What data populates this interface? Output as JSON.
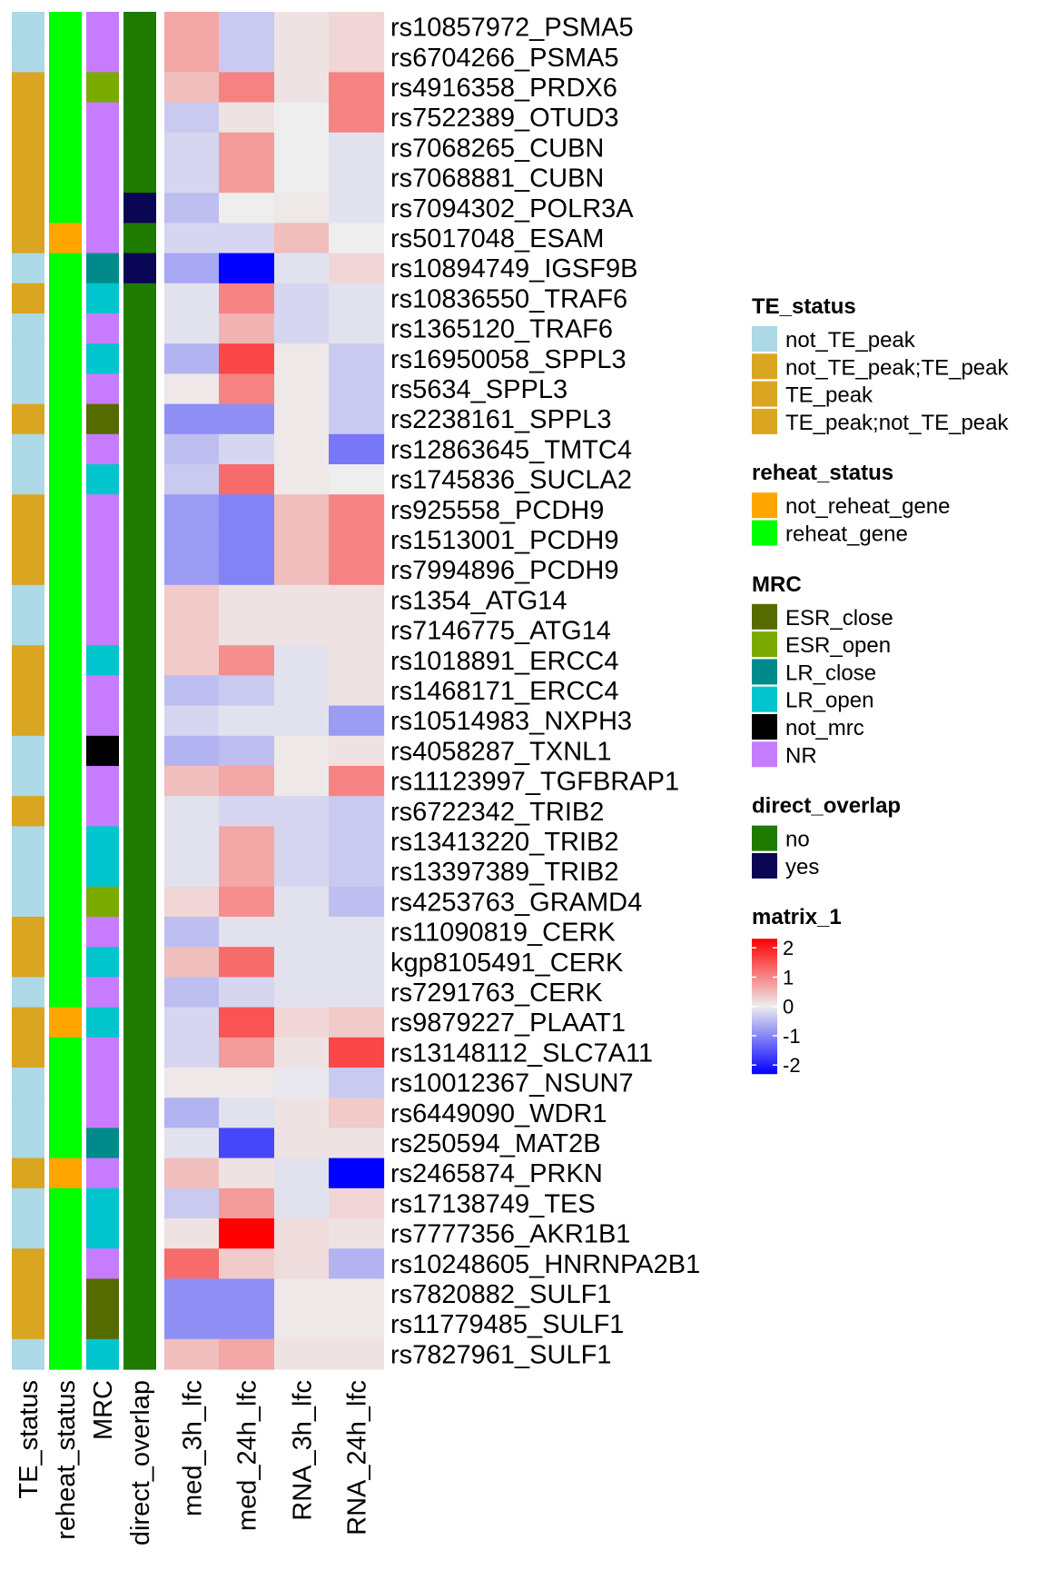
{
  "chart_data": {
    "type": "heatmap",
    "rows": [
      "rs10857972_PSMA5",
      "rs6704266_PSMA5",
      "rs4916358_PRDX6",
      "rs7522389_OTUD3",
      "rs7068265_CUBN",
      "rs7068881_CUBN",
      "rs7094302_POLR3A",
      "rs5017048_ESAM",
      "rs10894749_IGSF9B",
      "rs10836550_TRAF6",
      "rs1365120_TRAF6",
      "rs16950058_SPPL3",
      "rs5634_SPPL3",
      "rs2238161_SPPL3",
      "rs12863645_TMTC4",
      "rs1745836_SUCLA2",
      "rs925558_PCDH9",
      "rs1513001_PCDH9",
      "rs7994896_PCDH9",
      "rs1354_ATG14",
      "rs7146775_ATG14",
      "rs1018891_ERCC4",
      "rs1468171_ERCC4",
      "rs10514983_NXPH3",
      "rs4058287_TXNL1",
      "rs11123997_TGFBRAP1",
      "rs6722342_TRIB2",
      "rs13413220_TRIB2",
      "rs13397389_TRIB2",
      "rs4253763_GRAMD4",
      "rs11090819_CERK",
      "kgp8105491_CERK",
      "rs7291763_CERK",
      "rs9879227_PLAAT1",
      "rs13148112_SLC7A11",
      "rs10012367_NSUN7",
      "rs6449090_WDR1",
      "rs250594_MAT2B",
      "rs2465874_PRKN",
      "rs17138749_TES",
      "rs7777356_AKR1B1",
      "rs10248605_HNRNPA2B1",
      "rs7820882_SULF1",
      "rs11779485_SULF1",
      "rs7827961_SULF1"
    ],
    "annotation_columns": [
      "TE_status",
      "reheat_status",
      "MRC",
      "direct_overlap"
    ],
    "matrix_columns": [
      "med_3h_lfc",
      "med_24h_lfc",
      "RNA_3h_lfc",
      "RNA_24h_lfc"
    ],
    "annotations": {
      "TE_status": [
        "not_TE_peak",
        "not_TE_peak",
        "TE_peak",
        "TE_peak",
        "TE_peak",
        "TE_peak",
        "TE_peak",
        "TE_peak",
        "not_TE_peak",
        "TE_peak",
        "not_TE_peak",
        "not_TE_peak",
        "not_TE_peak",
        "TE_peak",
        "not_TE_peak",
        "not_TE_peak",
        "TE_peak",
        "TE_peak",
        "TE_peak",
        "not_TE_peak",
        "not_TE_peak",
        "TE_peak",
        "TE_peak",
        "TE_peak",
        "not_TE_peak",
        "not_TE_peak",
        "TE_peak",
        "not_TE_peak",
        "not_TE_peak",
        "not_TE_peak",
        "TE_peak",
        "TE_peak",
        "not_TE_peak",
        "TE_peak",
        "TE_peak",
        "not_TE_peak",
        "not_TE_peak",
        "not_TE_peak",
        "TE_peak",
        "not_TE_peak",
        "not_TE_peak",
        "TE_peak",
        "TE_peak",
        "TE_peak",
        "not_TE_peak"
      ],
      "reheat_status": [
        "reheat_gene",
        "reheat_gene",
        "reheat_gene",
        "reheat_gene",
        "reheat_gene",
        "reheat_gene",
        "reheat_gene",
        "not_reheat_gene",
        "reheat_gene",
        "reheat_gene",
        "reheat_gene",
        "reheat_gene",
        "reheat_gene",
        "reheat_gene",
        "reheat_gene",
        "reheat_gene",
        "reheat_gene",
        "reheat_gene",
        "reheat_gene",
        "reheat_gene",
        "reheat_gene",
        "reheat_gene",
        "reheat_gene",
        "reheat_gene",
        "reheat_gene",
        "reheat_gene",
        "reheat_gene",
        "reheat_gene",
        "reheat_gene",
        "reheat_gene",
        "reheat_gene",
        "reheat_gene",
        "reheat_gene",
        "not_reheat_gene",
        "reheat_gene",
        "reheat_gene",
        "reheat_gene",
        "reheat_gene",
        "not_reheat_gene",
        "reheat_gene",
        "reheat_gene",
        "reheat_gene",
        "reheat_gene",
        "reheat_gene",
        "reheat_gene"
      ],
      "MRC": [
        "NR",
        "NR",
        "ESR_open",
        "NR",
        "NR",
        "NR",
        "NR",
        "NR",
        "LR_close",
        "LR_open",
        "NR",
        "LR_open",
        "NR",
        "ESR_close",
        "NR",
        "LR_open",
        "NR",
        "NR",
        "NR",
        "NR",
        "NR",
        "LR_open",
        "NR",
        "NR",
        "not_mrc",
        "NR",
        "NR",
        "LR_open",
        "LR_open",
        "ESR_open",
        "NR",
        "LR_open",
        "NR",
        "LR_open",
        "NR",
        "NR",
        "NR",
        "LR_close",
        "NR",
        "LR_open",
        "LR_open",
        "NR",
        "ESR_close",
        "ESR_close",
        "LR_open"
      ],
      "direct_overlap": [
        "no",
        "no",
        "no",
        "no",
        "no",
        "no",
        "yes",
        "no",
        "yes",
        "no",
        "no",
        "no",
        "no",
        "no",
        "no",
        "no",
        "no",
        "no",
        "no",
        "no",
        "no",
        "no",
        "no",
        "no",
        "no",
        "no",
        "no",
        "no",
        "no",
        "no",
        "no",
        "no",
        "no",
        "no",
        "no",
        "no",
        "no",
        "no",
        "no",
        "no",
        "no",
        "no",
        "no",
        "no",
        "no"
      ]
    },
    "values": [
      [
        0.6,
        -0.3,
        0.1,
        0.2
      ],
      [
        0.6,
        -0.3,
        0.1,
        0.2
      ],
      [
        0.4,
        0.9,
        0.1,
        0.9
      ],
      [
        -0.3,
        0.1,
        0.0,
        0.9
      ],
      [
        -0.2,
        0.7,
        0.0,
        -0.1
      ],
      [
        -0.2,
        0.7,
        0.0,
        -0.1
      ],
      [
        -0.4,
        0.0,
        0.05,
        -0.1
      ],
      [
        -0.2,
        -0.2,
        0.4,
        0.0
      ],
      [
        -0.6,
        -2.0,
        -0.1,
        0.2
      ],
      [
        -0.1,
        0.9,
        -0.2,
        -0.1
      ],
      [
        -0.1,
        0.5,
        -0.2,
        -0.1
      ],
      [
        -0.5,
        1.4,
        0.05,
        -0.3
      ],
      [
        0.05,
        0.9,
        0.05,
        -0.3
      ],
      [
        -0.8,
        -0.8,
        0.05,
        -0.3
      ],
      [
        -0.4,
        -0.2,
        0.05,
        -1.0
      ],
      [
        -0.3,
        1.1,
        0.05,
        0.0
      ],
      [
        -0.7,
        -0.9,
        0.4,
        0.9
      ],
      [
        -0.7,
        -0.9,
        0.4,
        0.9
      ],
      [
        -0.7,
        -0.9,
        0.4,
        0.9
      ],
      [
        0.3,
        0.1,
        0.1,
        0.1
      ],
      [
        0.3,
        0.1,
        0.1,
        0.1
      ],
      [
        0.3,
        0.8,
        -0.1,
        0.1
      ],
      [
        -0.4,
        -0.3,
        -0.1,
        0.1
      ],
      [
        -0.2,
        -0.1,
        -0.1,
        -0.7
      ],
      [
        -0.5,
        -0.4,
        0.05,
        0.1
      ],
      [
        0.4,
        0.6,
        0.05,
        0.9
      ],
      [
        -0.1,
        -0.2,
        -0.2,
        -0.3
      ],
      [
        -0.1,
        0.6,
        -0.2,
        -0.3
      ],
      [
        -0.1,
        0.6,
        -0.2,
        -0.3
      ],
      [
        0.2,
        0.8,
        -0.1,
        -0.4
      ],
      [
        -0.4,
        -0.1,
        -0.1,
        -0.1
      ],
      [
        0.4,
        1.1,
        -0.1,
        -0.1
      ],
      [
        -0.4,
        -0.2,
        -0.1,
        -0.1
      ],
      [
        -0.2,
        1.3,
        0.2,
        0.3
      ],
      [
        -0.2,
        0.7,
        0.1,
        1.4
      ],
      [
        0.05,
        0.05,
        -0.05,
        -0.3
      ],
      [
        -0.5,
        -0.1,
        0.1,
        0.3
      ],
      [
        -0.1,
        -1.4,
        0.1,
        0.1
      ],
      [
        0.4,
        0.1,
        -0.1,
        -2.0
      ],
      [
        -0.3,
        0.7,
        -0.1,
        0.2
      ],
      [
        0.1,
        2.0,
        0.15,
        0.1
      ],
      [
        1.1,
        0.3,
        0.15,
        -0.5
      ],
      [
        -0.8,
        -0.8,
        0.05,
        0.05
      ],
      [
        -0.8,
        -0.8,
        0.05,
        0.05
      ],
      [
        0.4,
        0.6,
        0.1,
        0.1
      ]
    ],
    "colors": {
      "TE_status": {
        "not_TE_peak": "#ADD8E6",
        "not_TE_peak;TE_peak": "#DAA520",
        "TE_peak": "#DAA520",
        "TE_peak;not_TE_peak": "#DAA520"
      },
      "reheat_status": {
        "not_reheat_gene": "#FFA500",
        "reheat_gene": "#00FF00"
      },
      "MRC": {
        "ESR_close": "#556B00",
        "ESR_open": "#7AAA00",
        "LR_close": "#008B8B",
        "LR_open": "#00C5CD",
        "not_mrc": "#000000",
        "NR": "#C77CFF"
      },
      "direct_overlap": {
        "no": "#1F7A00",
        "yes": "#0B0555"
      },
      "matrix_low": "#0000FF",
      "matrix_mid": "#EEEEEE",
      "matrix_high": "#FF0000"
    },
    "legends": [
      {
        "title": "TE_status",
        "items": [
          "not_TE_peak",
          "not_TE_peak;TE_peak",
          "TE_peak",
          "TE_peak;not_TE_peak"
        ]
      },
      {
        "title": "reheat_status",
        "items": [
          "not_reheat_gene",
          "reheat_gene"
        ]
      },
      {
        "title": "MRC",
        "items": [
          "ESR_close",
          "ESR_open",
          "LR_close",
          "LR_open",
          "not_mrc",
          "NR"
        ]
      },
      {
        "title": "direct_overlap",
        "items": [
          "no",
          "yes"
        ]
      }
    ],
    "colorbar": {
      "title": "matrix_1",
      "range": [
        -2,
        2
      ],
      "ticks": [
        "2",
        "1",
        "0",
        "-1",
        "-2"
      ]
    }
  }
}
